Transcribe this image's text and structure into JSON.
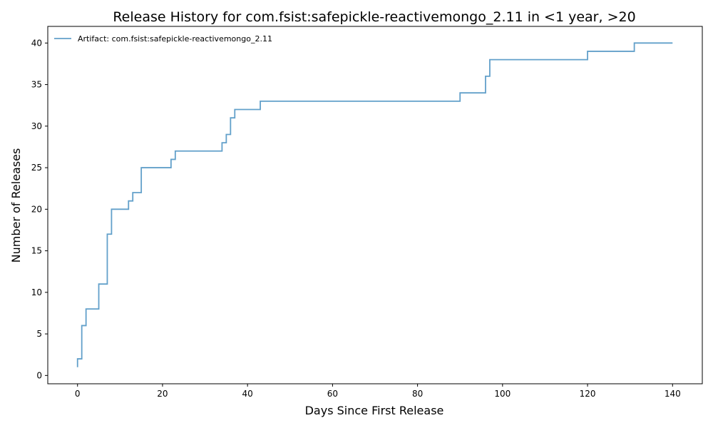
{
  "chart_data": {
    "type": "line",
    "step": "post",
    "title": "Release History for com.fsist:safepickle-reactivemongo_2.11 in <1 year, >20",
    "xlabel": "Days Since First Release",
    "ylabel": "Number of Releases",
    "xlim": [
      -7,
      147
    ],
    "ylim": [
      -1,
      42
    ],
    "xticks": [
      0,
      20,
      40,
      60,
      80,
      100,
      120,
      140
    ],
    "yticks": [
      0,
      5,
      10,
      15,
      20,
      25,
      30,
      35,
      40
    ],
    "grid": false,
    "legend_position": "top-left",
    "series": [
      {
        "name": "Artifact: com.fsist:safepickle-reactivemongo_2.11",
        "color": "#1f77b4",
        "x": [
          0,
          0,
          1,
          1,
          2,
          5,
          5,
          7,
          7,
          8,
          8,
          12,
          13,
          15,
          15,
          22,
          23,
          23,
          34,
          35,
          36,
          36,
          37,
          43,
          90,
          96,
          97,
          120,
          131,
          140
        ],
        "y": [
          1,
          2,
          2,
          6,
          8,
          8,
          11,
          11,
          17,
          17,
          20,
          21,
          22,
          22,
          25,
          26,
          26,
          27,
          28,
          29,
          29,
          31,
          32,
          33,
          34,
          36,
          38,
          39,
          40,
          40
        ]
      }
    ]
  }
}
